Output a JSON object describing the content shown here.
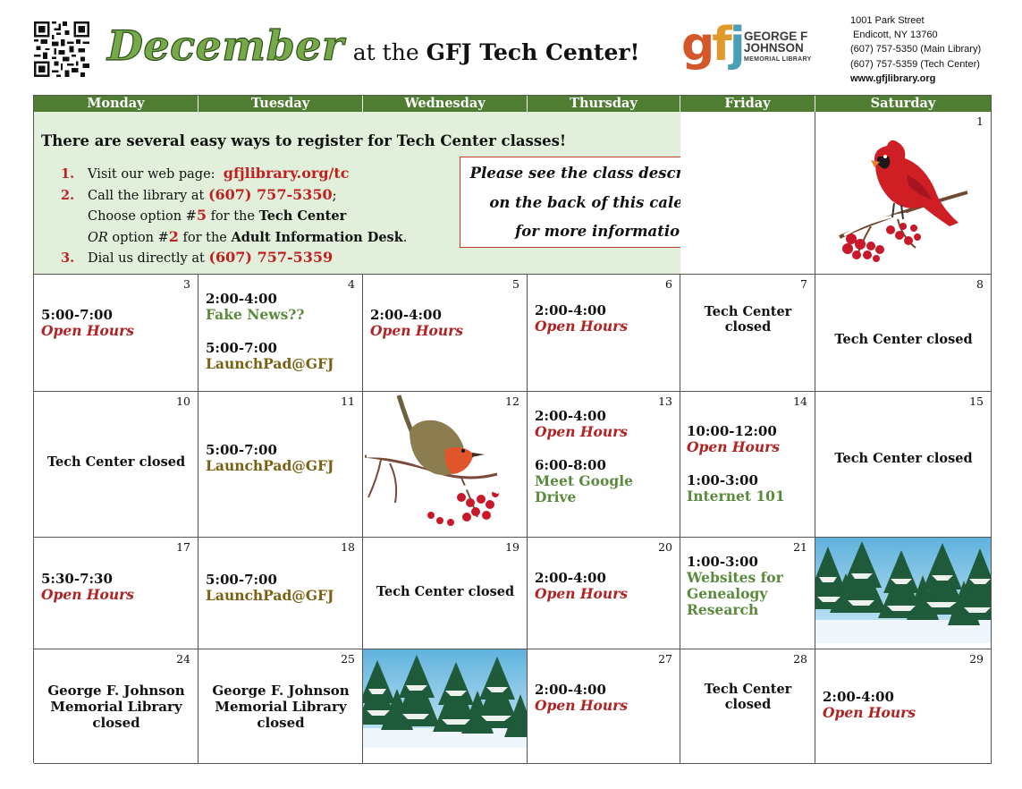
{
  "header": {
    "title_month": "December",
    "title_rest_prefix": "at the",
    "title_rest_bold": "GFJ Tech Center!",
    "logo": {
      "mark": "gfj",
      "line1": "GEORGE F",
      "line2": "JOHNSON",
      "line3": "MEMORIAL LIBRARY"
    },
    "address": [
      "1001 Park Street",
      "Endicott, NY 13760",
      "(607) 757-5350 (Main Library)",
      "(607) 757-5359 (Tech Center)",
      "www.gfjlibrary.org"
    ]
  },
  "weekdays": [
    "Monday",
    "Tuesday",
    "Wednesday",
    "Thursday",
    "Friday",
    "Saturday"
  ],
  "register": {
    "title": "There are several easy ways to register for Tech Center classes!",
    "step1_num": "1.",
    "step1_text": "Visit our web page:",
    "step1_link": "gfjlibrary.org/tc",
    "step2_num": "2.",
    "step2_text": "Call the library at",
    "step2_phone": "(607) 757-5350",
    "step2_semicolon": ";",
    "step2_line2_pre": "Choose option #",
    "step2_line2_num": "5",
    "step2_line2_mid": " for the ",
    "step2_line2_bold": "Tech Center",
    "step2_line3_or": "OR",
    "step2_line3_pre": " option #",
    "step2_line3_num": "2",
    "step2_line3_mid": " for the ",
    "step2_line3_bold": "Adult Information Desk",
    "step2_line3_end": ".",
    "step3_num": "3.",
    "step3_text": "Dial us directly at",
    "step3_phone": "(607) 757-5359",
    "note_lines": [
      "Please see the class descriptions",
      "on the back of this calendar",
      "for more information."
    ]
  },
  "days": {
    "d1": "1",
    "d3": {
      "num": "3",
      "time": "5:00-7:00",
      "event": "Open Hours"
    },
    "d4": {
      "num": "4",
      "time1": "2:00-4:00",
      "event1": "Fake News??",
      "time2": "5:00-7:00",
      "event2": "LaunchPad@GFJ"
    },
    "d5": {
      "num": "5",
      "time": "2:00-4:00",
      "event": "Open Hours"
    },
    "d6": {
      "num": "6",
      "time": "2:00-4:00",
      "event": "Open Hours"
    },
    "d7": {
      "num": "7",
      "line1": "Tech Center",
      "line2": "closed"
    },
    "d8": {
      "num": "8",
      "text": "Tech Center closed"
    },
    "d10": {
      "num": "10",
      "text": "Tech Center closed"
    },
    "d11": {
      "num": "11",
      "time": "5:00-7:00",
      "event": "LaunchPad@GFJ"
    },
    "d12": "12",
    "d13": {
      "num": "13",
      "time1": "2:00-4:00",
      "event1": "Open Hours",
      "time2": "6:00-8:00",
      "event2a": "Meet Google",
      "event2b": "Drive"
    },
    "d14": {
      "num": "14",
      "time1": "10:00-12:00",
      "event1": "Open Hours",
      "time2": "1:00-3:00",
      "event2": "Internet 101"
    },
    "d15": {
      "num": "15",
      "text": "Tech Center closed"
    },
    "d17": {
      "num": "17",
      "time": "5:30-7:30",
      "event": "Open Hours"
    },
    "d18": {
      "num": "18",
      "time": "5:00-7:00",
      "event": "LaunchPad@GFJ"
    },
    "d19": {
      "num": "19",
      "text": "Tech Center closed"
    },
    "d20": {
      "num": "20",
      "time": "2:00-4:00",
      "event": "Open Hours"
    },
    "d21": {
      "num": "21",
      "time": "1:00-3:00",
      "event_a": "Websites for",
      "event_b": "Genealogy",
      "event_c": "Research"
    },
    "d24": {
      "num": "24",
      "line1": "George F. Johnson",
      "line2": "Memorial Library",
      "line3": "closed"
    },
    "d25": {
      "num": "25",
      "line1": "George F. Johnson",
      "line2": "Memorial Library",
      "line3": "closed"
    },
    "d27": {
      "num": "27",
      "time": "2:00-4:00",
      "event": "Open Hours"
    },
    "d28": {
      "num": "28",
      "line1": "Tech Center",
      "line2": "closed"
    },
    "d29": {
      "num": "29",
      "time": "2:00-4:00",
      "event": "Open Hours"
    }
  },
  "colors": {
    "header_green": "#4f7d31",
    "title_green": "#76a94a",
    "register_bg": "#e2efda",
    "accent_red": "#c02020",
    "event_green": "#5a8b3c",
    "launch_brown": "#7a6012"
  },
  "icons": [
    "qr-code-icon",
    "cardinal-illustration",
    "robin-illustration",
    "snowy-pines-illustration"
  ]
}
